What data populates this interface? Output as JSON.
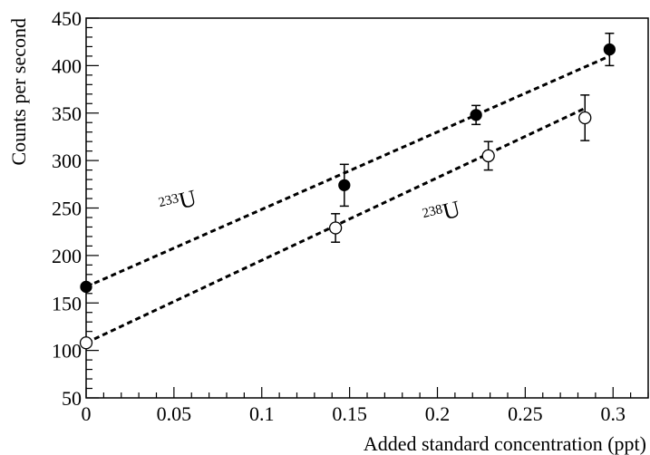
{
  "chart_data": {
    "type": "scatter",
    "title": "",
    "xlabel": "Added standard concentration (ppt)",
    "ylabel": "Counts per second",
    "xlim": [
      0,
      0.32
    ],
    "ylim": [
      50,
      450
    ],
    "x_ticks": [
      0,
      0.05,
      0.1,
      0.15,
      0.2,
      0.25,
      0.3
    ],
    "x_tick_labels": [
      "0",
      "0.05",
      "0.1",
      "0.15",
      "0.2",
      "0.25",
      "0.3"
    ],
    "y_ticks": [
      50,
      100,
      150,
      200,
      250,
      300,
      350,
      400,
      450
    ],
    "y_tick_labels": [
      "50",
      "100",
      "150",
      "200",
      "250",
      "300",
      "350",
      "400",
      "450"
    ],
    "grid": false,
    "series": [
      {
        "name": "233U",
        "mass_number": "233",
        "element": "U",
        "marker": "filled-circle",
        "points": [
          {
            "x": 0,
            "y": 167,
            "err": 0
          },
          {
            "x": 0.147,
            "y": 274,
            "err": 22
          },
          {
            "x": 0.222,
            "y": 348,
            "err": 10
          },
          {
            "x": 0.298,
            "y": 417,
            "err": 17
          }
        ],
        "fit": {
          "x": [
            0,
            0.298
          ],
          "y": [
            167,
            410
          ]
        }
      },
      {
        "name": "238U",
        "mass_number": "238",
        "element": "U",
        "marker": "open-circle",
        "points": [
          {
            "x": 0,
            "y": 108,
            "err": 0
          },
          {
            "x": 0.142,
            "y": 229,
            "err": 15
          },
          {
            "x": 0.229,
            "y": 305,
            "err": 15
          },
          {
            "x": 0.284,
            "y": 345,
            "err": 24
          }
        ],
        "fit": {
          "x": [
            0,
            0.284
          ],
          "y": [
            108,
            355
          ]
        }
      }
    ]
  }
}
